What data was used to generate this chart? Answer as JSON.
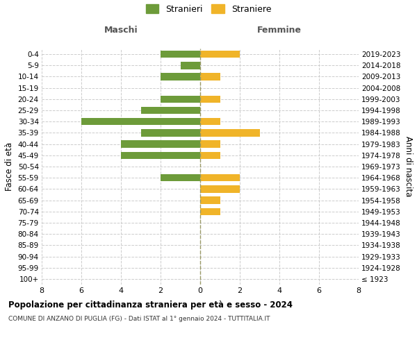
{
  "age_groups": [
    "100+",
    "95-99",
    "90-94",
    "85-89",
    "80-84",
    "75-79",
    "70-74",
    "65-69",
    "60-64",
    "55-59",
    "50-54",
    "45-49",
    "40-44",
    "35-39",
    "30-34",
    "25-29",
    "20-24",
    "15-19",
    "10-14",
    "5-9",
    "0-4"
  ],
  "birth_years": [
    "≤ 1923",
    "1924-1928",
    "1929-1933",
    "1934-1938",
    "1939-1943",
    "1944-1948",
    "1949-1953",
    "1954-1958",
    "1959-1963",
    "1964-1968",
    "1969-1973",
    "1974-1978",
    "1979-1983",
    "1984-1988",
    "1989-1993",
    "1994-1998",
    "1999-2003",
    "2004-2008",
    "2009-2013",
    "2014-2018",
    "2019-2023"
  ],
  "males": [
    0,
    0,
    0,
    0,
    0,
    0,
    0,
    0,
    0,
    2,
    0,
    4,
    4,
    3,
    6,
    3,
    2,
    0,
    2,
    1,
    2
  ],
  "females": [
    0,
    0,
    0,
    0,
    0,
    0,
    1,
    1,
    2,
    2,
    0,
    1,
    1,
    3,
    1,
    0,
    1,
    0,
    1,
    0,
    2
  ],
  "male_color": "#6d9b3a",
  "female_color": "#f0b429",
  "xlim": 8,
  "title_main": "Popolazione per cittadinanza straniera per età e sesso - 2024",
  "title_sub": "COMUNE DI ANZANO DI PUGLIA (FG) - Dati ISTAT al 1° gennaio 2024 - TUTTITALIA.IT",
  "left_label": "Maschi",
  "right_label": "Femmine",
  "ylabel_left": "Fasce di età",
  "ylabel_right": "Anni di nascita",
  "legend_male": "Stranieri",
  "legend_female": "Straniere",
  "bg_color": "#ffffff",
  "grid_color": "#cccccc"
}
